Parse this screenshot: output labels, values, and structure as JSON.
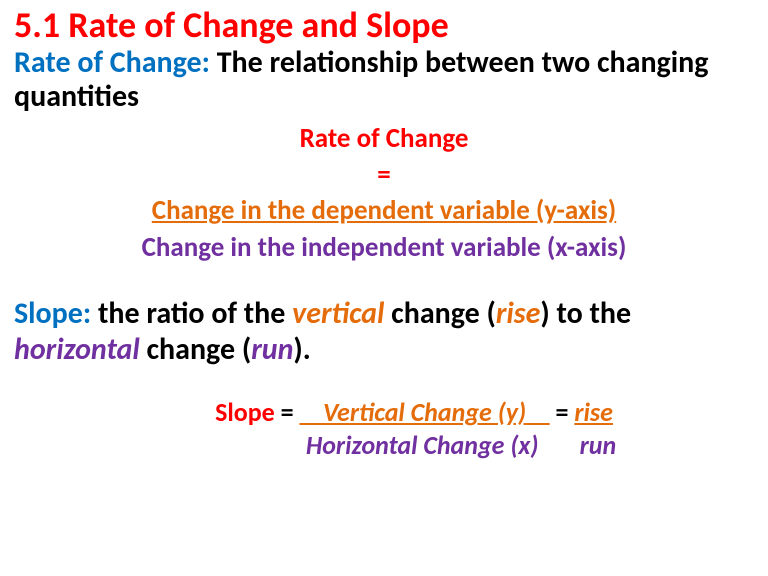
{
  "colors": {
    "red": "#ff0000",
    "blue": "#0070c0",
    "black": "#000000",
    "orange": "#e46c0a",
    "purple": "#7030a0"
  },
  "title": "5.1 Rate of Change and Slope",
  "rate_of_change": {
    "label": "Rate of Change:",
    "definition": " The relationship between two changing quantities"
  },
  "roc_formula": {
    "top": "Rate of Change",
    "equals": "=",
    "numerator": "Change in the dependent variable (y-axis)",
    "denominator": "Change in the independent variable (x-axis)"
  },
  "slope": {
    "label": "Slope:",
    "def_part1": " the ratio of the ",
    "def_vertical": "vertical",
    "def_part2": " change (",
    "def_rise": "rise",
    "def_part3": ") to the ",
    "def_horizontal": "horizontal",
    "def_part4": " change (",
    "def_run": "run",
    "def_part5": ")."
  },
  "slope_formula": {
    "slope_label": "Slope",
    "equals1": " = ",
    "numerator_pad_left": "    ",
    "numerator": "Vertical Change (y)",
    "numerator_pad_right": "    ",
    "equals2": " = ",
    "rise": "rise",
    "denom_pad_left": "                ",
    "denominator": "Horizontal Change (x)",
    "denom_pad_right": "       ",
    "run": "run"
  }
}
